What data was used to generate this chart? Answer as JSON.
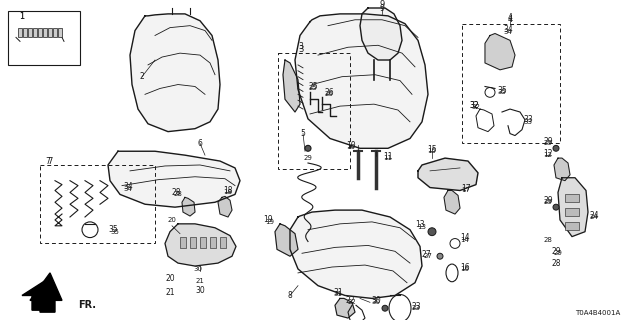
{
  "diagram_code": "T0A4B4001A",
  "background_color": "#ffffff",
  "line_color": "#1a1a1a",
  "fig_width": 6.4,
  "fig_height": 3.2,
  "dpi": 100,
  "fr_label": "FR."
}
